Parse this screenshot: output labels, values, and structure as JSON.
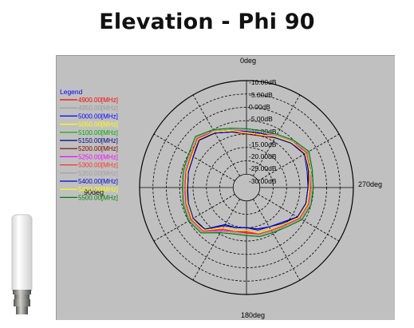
{
  "page": {
    "title": "Elevation - Phi 90"
  },
  "chart_data": {
    "type": "polar",
    "title": "Elevation - Phi 90",
    "angle_labels": {
      "top": "0deg",
      "right": "270deg",
      "bottom": "180deg",
      "left": "90deg"
    },
    "radial_labels": [
      "-10.00dB",
      "-5.00dB",
      "0.00dB",
      "-5.00dB",
      "-10.00dB",
      "-15.00dB",
      "-20.00dB",
      "-25.00dB",
      "-30.00dB"
    ],
    "legend_title": "Legend",
    "angles_deg": [
      0,
      15,
      30,
      45,
      60,
      75,
      90,
      105,
      120,
      135,
      150,
      165,
      180,
      195,
      210,
      225,
      240,
      255,
      270,
      285,
      300,
      315,
      330,
      345
    ],
    "series": [
      {
        "name": "4900.00[MHz]",
        "color": "#ff0000",
        "values": [
          -9.5,
          -8,
          -6,
          -4,
          -6,
          -6.5,
          -7,
          -6.5,
          -6,
          -7,
          -12,
          -13,
          -13,
          -12,
          -11.5,
          -10,
          -7,
          -6,
          -6,
          -5.5,
          -4,
          -6,
          -8,
          -9.5
        ]
      },
      {
        "name": "4950.00[MHz]",
        "color": "#9a9a9a",
        "values": [
          -8.5,
          -7.5,
          -5.5,
          -3.5,
          -5.5,
          -6,
          -6.5,
          -6,
          -5.5,
          -6.5,
          -11,
          -12.5,
          -12.5,
          -11.5,
          -11,
          -9.5,
          -6.5,
          -5.5,
          -5.5,
          -5,
          -3.5,
          -5.5,
          -7.5,
          -8.5
        ]
      },
      {
        "name": "5000.00[MHz]",
        "color": "#0000ff",
        "values": [
          -9,
          -8.5,
          -6.5,
          -4.5,
          -7,
          -7.5,
          -8,
          -7,
          -6.5,
          -8,
          -14,
          -14.5,
          -15,
          -14,
          -13,
          -11.5,
          -8,
          -7,
          -7,
          -6,
          -4.5,
          -6.5,
          -8.5,
          -9
        ]
      },
      {
        "name": "5050.00[MHz]",
        "color": "#ffff00",
        "values": [
          -9.5,
          -8,
          -6,
          -4.5,
          -6.5,
          -7,
          -7.5,
          -7,
          -6.5,
          -7.5,
          -12.5,
          -13.5,
          -14,
          -12.5,
          -12,
          -10.5,
          -7.5,
          -6.5,
          -6.5,
          -5.5,
          -4.5,
          -6,
          -8,
          -9.5
        ]
      },
      {
        "name": "5100.00[MHz]",
        "color": "#00aa00",
        "values": [
          -8,
          -7,
          -5,
          -3,
          -5,
          -5.5,
          -6,
          -5.5,
          -5,
          -6,
          -10.5,
          -12,
          -12,
          -11,
          -10.5,
          -9,
          -6,
          -5,
          -5,
          -4.5,
          -3,
          -5,
          -7,
          -8
        ]
      },
      {
        "name": "5150.00[MHz]",
        "color": "#000080",
        "values": [
          -9,
          -8.5,
          -6.5,
          -5,
          -7,
          -7.5,
          -8,
          -7.5,
          -7,
          -8,
          -13.5,
          -14.5,
          -15,
          -13.5,
          -13,
          -11,
          -8,
          -7,
          -7,
          -6.5,
          -5,
          -6.5,
          -8.5,
          -9
        ]
      },
      {
        "name": "5200.00[MHz]",
        "color": "#800000",
        "values": [
          -10,
          -8.5,
          -6.5,
          -4.5,
          -6.5,
          -7,
          -7.5,
          -7,
          -6.5,
          -7.5,
          -12.5,
          -13.5,
          -14,
          -12.5,
          -12,
          -10.5,
          -7.5,
          -6.5,
          -6.5,
          -6,
          -4.5,
          -6.5,
          -8.5,
          -10
        ]
      },
      {
        "name": "5250.00[MHz]",
        "color": "#ff00ff",
        "values": [
          -9,
          -7.5,
          -5.5,
          -4,
          -6,
          -6.5,
          -7,
          -6.5,
          -6,
          -7,
          -11.5,
          -13,
          -13.5,
          -12,
          -11.5,
          -10,
          -7,
          -6,
          -6,
          -5.5,
          -4,
          -5.5,
          -7.5,
          -9
        ]
      },
      {
        "name": "5300.00[MHz]",
        "color": "#ff3030",
        "values": [
          -9.5,
          -8,
          -6,
          -4,
          -6,
          -6.5,
          -7,
          -6.5,
          -6,
          -7,
          -12,
          -13,
          -13.5,
          -12,
          -11.5,
          -10,
          -7,
          -6,
          -6,
          -5.5,
          -4,
          -6,
          -8,
          -9.5
        ]
      },
      {
        "name": "5350.00[MHz]",
        "color": "#a0a0a0",
        "values": [
          -8.5,
          -7.5,
          -5.5,
          -3.5,
          -5.5,
          -6,
          -6.5,
          -6,
          -5.5,
          -6.5,
          -11,
          -12.5,
          -12.5,
          -11.5,
          -11,
          -9.5,
          -6.5,
          -5.5,
          -5.5,
          -5,
          -3.5,
          -5.5,
          -7.5,
          -8.5
        ]
      },
      {
        "name": "5400.00[MHz]",
        "color": "#0000cc",
        "values": [
          -9,
          -8.5,
          -6.5,
          -4.5,
          -7,
          -7.5,
          -8,
          -7,
          -6.5,
          -8,
          -14,
          -14.5,
          -15,
          -14,
          -13,
          -11.5,
          -8,
          -7,
          -7,
          -6,
          -4.5,
          -6.5,
          -8.5,
          -9
        ]
      },
      {
        "name": "5450.00[MHz]",
        "color": "#ffff00",
        "values": [
          -9.5,
          -8,
          -6,
          -4.5,
          -6.5,
          -7,
          -7.5,
          -7,
          -6.5,
          -7.5,
          -12.5,
          -13.5,
          -14,
          -12.5,
          -12,
          -10.5,
          -7.5,
          -6.5,
          -6.5,
          -5.5,
          -4.5,
          -6,
          -8,
          -9.5
        ]
      },
      {
        "name": "5500.00[MHz]",
        "color": "#008000",
        "values": [
          -8,
          -7,
          -5,
          -3,
          -5,
          -5.5,
          -6,
          -5.5,
          -5,
          -6,
          -10.5,
          -12,
          -12,
          -11,
          -10.5,
          -9,
          -6,
          -5,
          -5,
          -4.5,
          -3,
          -5,
          -7,
          -8
        ]
      }
    ]
  }
}
